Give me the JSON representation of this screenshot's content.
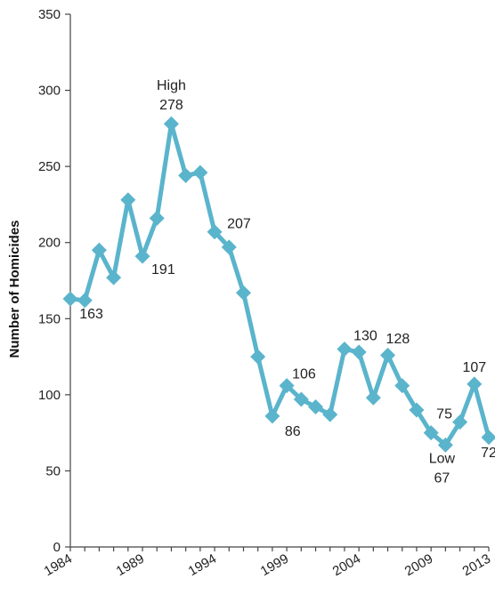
{
  "chart_data": {
    "type": "line",
    "title": "",
    "xlabel": "",
    "ylabel": "Number of Homicides",
    "ylim": [
      0,
      350
    ],
    "xlim": [
      1984,
      2013
    ],
    "yticks": [
      0,
      50,
      100,
      150,
      200,
      250,
      300,
      350
    ],
    "xticks": [
      1984,
      1989,
      1994,
      1999,
      2004,
      2009,
      2013
    ],
    "grid": false,
    "legend": "none",
    "colors": {
      "line": "#5ab4cc",
      "marker": "#5ab4cc"
    },
    "marker": "diamond",
    "series": [
      {
        "x": [
          1984,
          1985,
          1986,
          1987,
          1988,
          1989,
          1990,
          1991,
          1992,
          1993,
          1994,
          1995,
          1996,
          1997,
          1998,
          1999,
          2000,
          2001,
          2002,
          2003,
          2004,
          2005,
          2006,
          2007,
          2008,
          2009,
          2010,
          2011,
          2012,
          2013
        ],
        "values": [
          163,
          162,
          195,
          177,
          228,
          191,
          216,
          278,
          244,
          246,
          207,
          197,
          167,
          125,
          86,
          106,
          97,
          92,
          87,
          130,
          128,
          98,
          126,
          106,
          90,
          75,
          67,
          82,
          107,
          72
        ]
      }
    ],
    "annotations": [
      {
        "x": 1985,
        "y": 163,
        "lines": [
          "163"
        ]
      },
      {
        "x": 1989,
        "y": 191,
        "lines": [
          "191"
        ]
      },
      {
        "x": 1991,
        "y": 278,
        "lines": [
          "High",
          "278"
        ]
      },
      {
        "x": 1994,
        "y": 207,
        "lines": [
          "207"
        ]
      },
      {
        "x": 1998,
        "y": 86,
        "lines": [
          "86"
        ]
      },
      {
        "x": 1999,
        "y": 106,
        "lines": [
          "106"
        ]
      },
      {
        "x": 2004,
        "y": 130,
        "lines": [
          "130"
        ]
      },
      {
        "x": 2006,
        "y": 128,
        "lines": [
          "128"
        ]
      },
      {
        "x": 2009,
        "y": 75,
        "lines": [
          "75"
        ]
      },
      {
        "x": 2010,
        "y": 67,
        "lines": [
          "Low",
          "67"
        ]
      },
      {
        "x": 2012,
        "y": 107,
        "lines": [
          "107"
        ]
      },
      {
        "x": 2013,
        "y": 72,
        "lines": [
          "72"
        ]
      }
    ]
  }
}
